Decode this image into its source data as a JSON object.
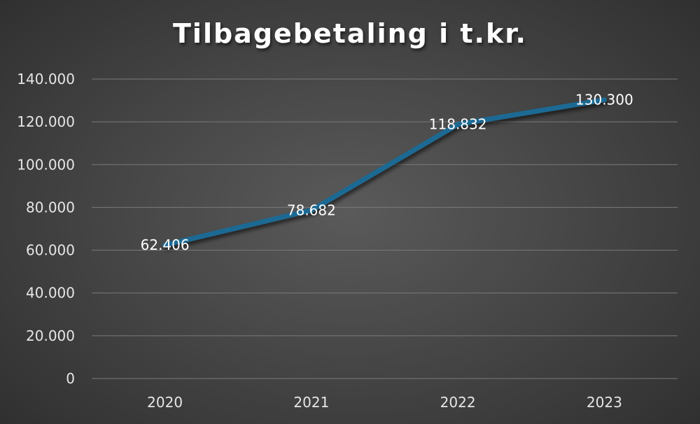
{
  "chart_data": {
    "type": "line",
    "title": "Tilbagebetaling i t.kr.",
    "categories": [
      "2020",
      "2021",
      "2022",
      "2023"
    ],
    "series": [
      {
        "values": [
          62406,
          78682,
          118832,
          130300
        ],
        "data_labels": [
          "62.406",
          "78.682",
          "118.832",
          "130.300"
        ],
        "color": "#1d6a94"
      }
    ],
    "ylim": [
      0,
      140000
    ],
    "y_ticks": [
      0,
      20000,
      40000,
      60000,
      80000,
      100000,
      120000,
      140000
    ],
    "y_tick_labels": [
      "0",
      "20.000",
      "40.000",
      "60.000",
      "80.000",
      "100.000",
      "120.000",
      "140.000"
    ],
    "grid": true,
    "legend": "none"
  }
}
